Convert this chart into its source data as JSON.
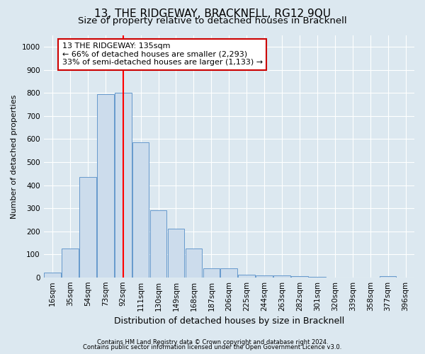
{
  "title": "13, THE RIDGEWAY, BRACKNELL, RG12 9QU",
  "subtitle": "Size of property relative to detached houses in Bracknell",
  "xlabel": "Distribution of detached houses by size in Bracknell",
  "ylabel": "Number of detached properties",
  "bin_labels": [
    "16sqm",
    "35sqm",
    "54sqm",
    "73sqm",
    "92sqm",
    "111sqm",
    "130sqm",
    "149sqm",
    "168sqm",
    "187sqm",
    "206sqm",
    "225sqm",
    "244sqm",
    "263sqm",
    "282sqm",
    "301sqm",
    "320sqm",
    "339sqm",
    "358sqm",
    "377sqm",
    "396sqm"
  ],
  "bar_values": [
    20,
    125,
    435,
    795,
    800,
    585,
    290,
    210,
    125,
    40,
    40,
    12,
    8,
    8,
    5,
    2,
    0,
    0,
    0,
    5,
    0
  ],
  "bar_color": "#ccdcec",
  "bar_edge_color": "#6699cc",
  "ylim": [
    0,
    1050
  ],
  "yticks": [
    0,
    100,
    200,
    300,
    400,
    500,
    600,
    700,
    800,
    900,
    1000
  ],
  "red_line_x": 4.5,
  "bin_edges_numeric": [
    0,
    1,
    2,
    3,
    4,
    5,
    6,
    7,
    8,
    9,
    10,
    11,
    12,
    13,
    14,
    15,
    16,
    17,
    18,
    19,
    20
  ],
  "annotation_line1": "13 THE RIDGEWAY: 135sqm",
  "annotation_line2": "← 66% of detached houses are smaller (2,293)",
  "annotation_line3": "33% of semi-detached houses are larger (1,133) →",
  "annotation_box_color": "#ffffff",
  "annotation_box_edge_color": "#cc0000",
  "footer1": "Contains HM Land Registry data © Crown copyright and database right 2024.",
  "footer2": "Contains public sector information licensed under the Open Government Licence v3.0.",
  "background_color": "#dce8f0",
  "plot_bg_color": "#dce8f0",
  "title_fontsize": 11,
  "subtitle_fontsize": 9.5,
  "tick_fontsize": 7.5,
  "ylabel_fontsize": 8,
  "xlabel_fontsize": 9,
  "footer_fontsize": 6,
  "annotation_fontsize": 8
}
